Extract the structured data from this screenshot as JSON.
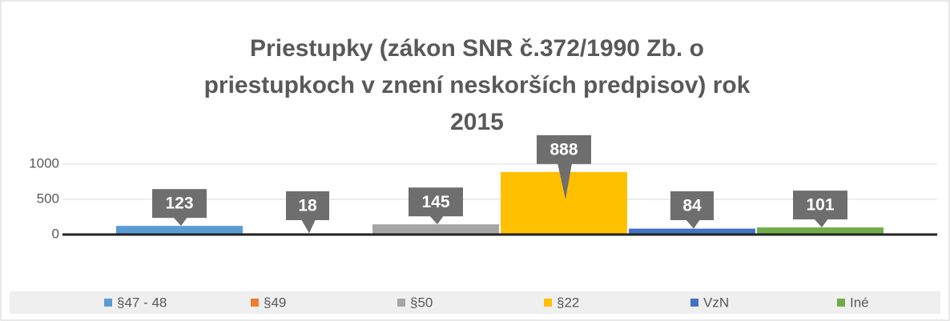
{
  "chart_data": {
    "type": "bar",
    "title": "Priestupky (zákon SNR č.372/1990 Zb. o priestupkoch v znení neskorších predpisov) rok 2015",
    "categories": [
      null
    ],
    "series": [
      {
        "name": "§47 - 48",
        "color": "#5b9bd5",
        "values": [
          123
        ]
      },
      {
        "name": "§49",
        "color": "#ed7d31",
        "values": [
          18
        ]
      },
      {
        "name": "§50",
        "color": "#a5a5a5",
        "values": [
          145
        ]
      },
      {
        "name": "§22",
        "color": "#ffc000",
        "values": [
          888
        ]
      },
      {
        "name": "VzN",
        "color": "#4472c4",
        "values": [
          84
        ]
      },
      {
        "name": "Iné",
        "color": "#70ad47",
        "values": [
          101
        ]
      }
    ],
    "ylim": [
      0,
      1000
    ],
    "yticks": [
      0,
      500,
      1000
    ],
    "grid": true,
    "legend": "bottom"
  }
}
